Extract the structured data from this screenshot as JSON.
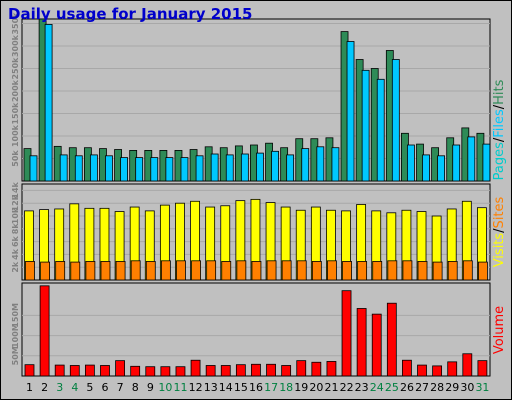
{
  "title": "Daily usage for January 2015",
  "colors": {
    "hits": "#2e8b57",
    "files": "#00c8ff",
    "pages": "#00cccc",
    "visits": "#ffff00",
    "sites": "#ff8000",
    "volume": "#ff0000",
    "panel_bg": "#c0c0c0",
    "weekend_label": "#008040"
  },
  "chart_data": [
    {
      "type": "bar",
      "name": "hits-files-pages",
      "ylabel_parts": [
        "Pages",
        "/",
        "Files",
        "/",
        "Hits"
      ],
      "yticks": [
        "350k",
        "300k",
        "250k",
        "200k",
        "150k",
        "100k",
        "50k"
      ],
      "ylim": [
        0,
        360
      ],
      "categories": [
        "1",
        "2",
        "3",
        "4",
        "5",
        "6",
        "7",
        "8",
        "9",
        "10",
        "11",
        "12",
        "13",
        "14",
        "15",
        "16",
        "17",
        "18",
        "19",
        "20",
        "21",
        "22",
        "23",
        "24",
        "25",
        "26",
        "27",
        "28",
        "29",
        "30",
        "31"
      ],
      "series": [
        {
          "name": "Hits",
          "values": [
            72,
            368,
            77,
            74,
            74,
            72,
            70,
            68,
            68,
            68,
            68,
            70,
            76,
            74,
            78,
            80,
            84,
            74,
            94,
            94,
            96,
            332,
            270,
            250,
            290,
            106,
            82,
            74,
            96,
            118,
            106
          ]
        },
        {
          "name": "Files",
          "values": [
            56,
            348,
            58,
            56,
            58,
            56,
            52,
            52,
            52,
            52,
            52,
            56,
            60,
            58,
            60,
            62,
            66,
            58,
            72,
            76,
            74,
            310,
            246,
            226,
            270,
            80,
            58,
            56,
            80,
            98,
            82
          ]
        }
      ]
    },
    {
      "type": "bar",
      "name": "visits-sites",
      "ylabel_parts": [
        "Visits",
        "/",
        "Sites"
      ],
      "yticks": [
        "14k",
        "12k",
        "10k",
        "8k",
        "6k",
        "4k",
        "2k"
      ],
      "ylim": [
        0,
        15
      ],
      "series": [
        {
          "name": "Visits",
          "values": [
            10.8,
            11.0,
            11.1,
            11.9,
            11.2,
            11.2,
            10.7,
            11.4,
            10.8,
            11.7,
            12.0,
            12.3,
            11.4,
            11.6,
            12.4,
            12.6,
            12.1,
            11.4,
            10.9,
            11.4,
            10.9,
            10.8,
            11.8,
            10.8,
            10.5,
            10.9,
            10.7,
            10.0,
            11.1,
            12.3,
            11.3
          ]
        },
        {
          "name": "Sites",
          "values": [
            2.9,
            2.8,
            2.9,
            2.8,
            2.9,
            2.9,
            2.9,
            3.0,
            2.9,
            3.0,
            3.0,
            3.0,
            3.0,
            2.9,
            3.0,
            2.9,
            3.0,
            3.0,
            3.0,
            2.9,
            3.0,
            2.9,
            2.9,
            2.9,
            3.0,
            3.0,
            2.9,
            2.8,
            2.9,
            3.0,
            2.8
          ]
        }
      ]
    },
    {
      "type": "bar",
      "name": "volume",
      "ylabel_parts": [
        "Volume"
      ],
      "yticks": [
        "150M",
        "100M",
        "50M"
      ],
      "ylim": [
        0,
        230
      ],
      "series": [
        {
          "name": "Volume",
          "values": [
            28,
            223,
            27,
            26,
            27,
            26,
            38,
            24,
            23,
            23,
            23,
            39,
            26,
            26,
            28,
            29,
            29,
            26,
            38,
            34,
            36,
            211,
            167,
            153,
            180,
            39,
            27,
            25,
            35,
            55,
            38
          ]
        }
      ]
    }
  ],
  "weekend_days": [
    3,
    4,
    10,
    11,
    17,
    18,
    24,
    25,
    31
  ]
}
